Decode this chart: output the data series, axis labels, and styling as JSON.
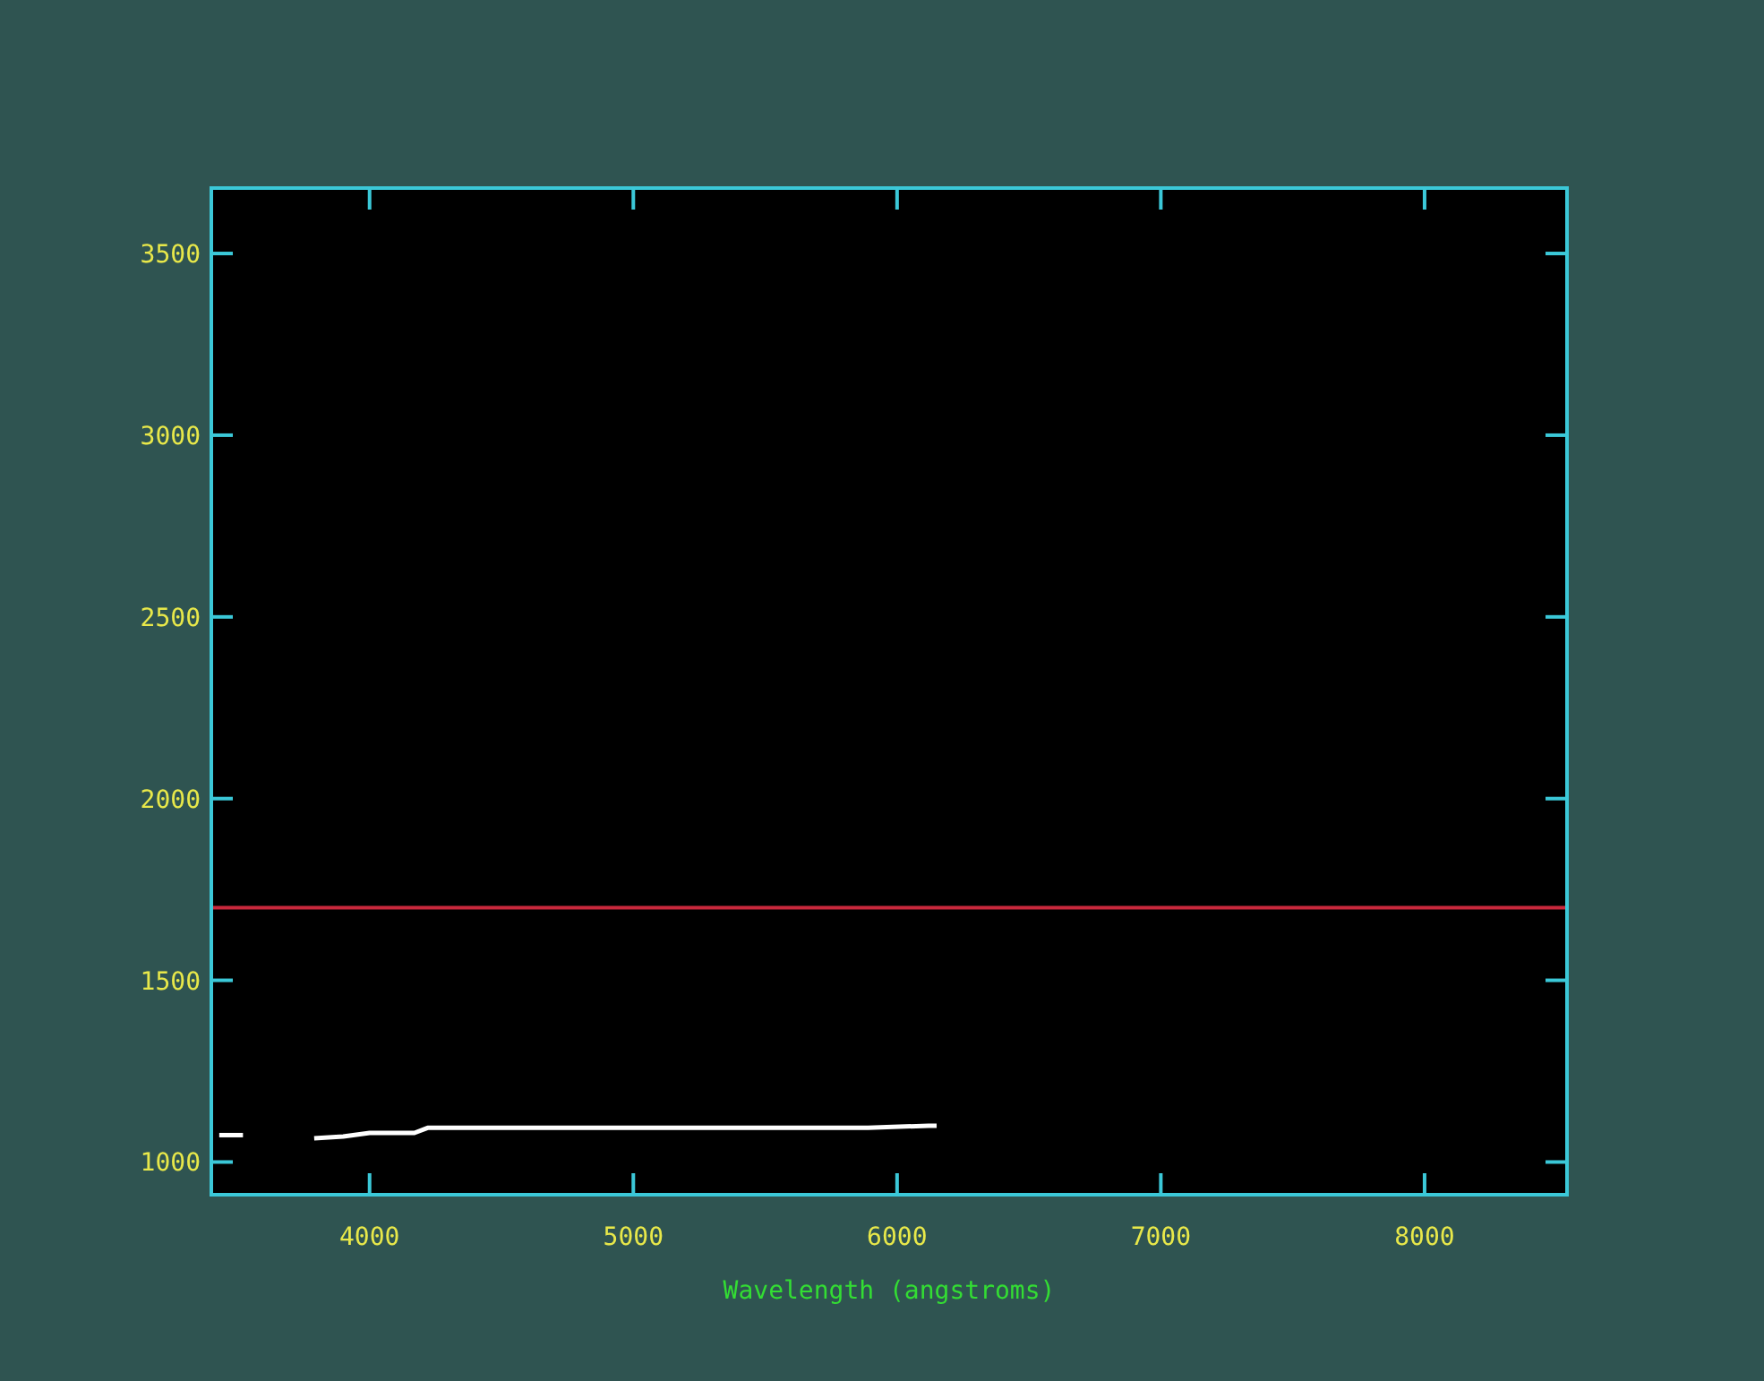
{
  "chart_data": {
    "type": "line",
    "xlabel": "Wavelength (angstroms)",
    "series": [
      {
        "color": "#ffffff",
        "x": [
          3430,
          3520
        ],
        "values": [
          1074,
          1074
        ]
      },
      {
        "color": "#ffffff",
        "x": [
          3790,
          3900,
          4000,
          4170,
          4220,
          4540,
          4610,
          5250,
          5420,
          5890,
          6120,
          6150
        ],
        "values": [
          1065,
          1070,
          1080,
          1080,
          1094,
          1094,
          1094,
          1094,
          1094,
          1094,
          1100,
          1100
        ]
      }
    ],
    "xlim": [
      3400,
      8540
    ],
    "xticks": [
      4000,
      5000,
      6000,
      7000,
      8000
    ],
    "ylim": [
      910,
      3680
    ],
    "yticks": [
      1000,
      1500,
      2000,
      2500,
      3000,
      3500
    ],
    "ref_lines": [
      {
        "axis": "y",
        "value": 1700,
        "color": "#c8283c"
      }
    ],
    "grid": false
  }
}
